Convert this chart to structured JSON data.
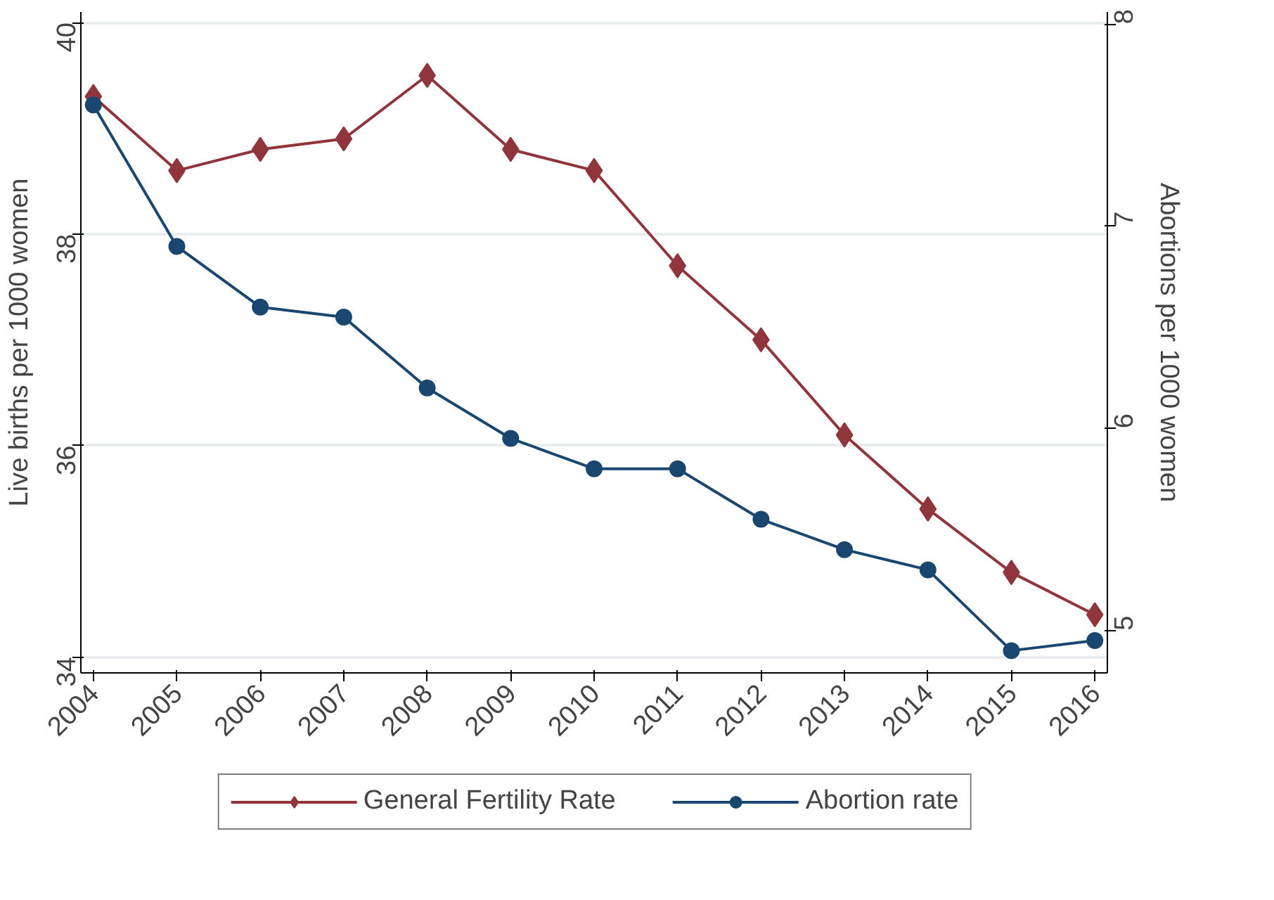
{
  "chart_data": {
    "type": "line",
    "ylabel": "Live births per 1000 women",
    "y2label": "Abortions per 1000 women",
    "x": [
      2004,
      2005,
      2006,
      2007,
      2008,
      2009,
      2010,
      2011,
      2012,
      2013,
      2014,
      2015,
      2016
    ],
    "xlim": [
      2003.85,
      2016.15
    ],
    "xticks": [
      2004,
      2005,
      2006,
      2007,
      2008,
      2009,
      2010,
      2011,
      2012,
      2013,
      2014,
      2015,
      2016
    ],
    "ylim": [
      33.85,
      40.1
    ],
    "yticks": [
      34,
      36,
      38,
      40
    ],
    "y2lim": [
      4.79,
      8.06
    ],
    "y2ticks": [
      5,
      6,
      7,
      8
    ],
    "series": [
      {
        "name": "General Fertility Rate",
        "color": "#90353b",
        "marker": "diamond",
        "values": [
          39.3,
          38.6,
          38.8,
          38.9,
          39.5,
          38.8,
          38.6,
          37.7,
          37.0,
          36.1,
          35.4,
          34.8,
          34.4
        ]
      },
      {
        "name": "Abortion rate",
        "color": "#1a476f",
        "marker": "circle",
        "axis": "y2",
        "values": [
          7.6,
          6.9,
          6.6,
          6.55,
          6.2,
          5.95,
          5.8,
          5.8,
          5.55,
          5.4,
          5.3,
          4.9,
          4.95
        ]
      }
    ],
    "grid": "y",
    "legend": "bottom",
    "line_style": "solid"
  }
}
